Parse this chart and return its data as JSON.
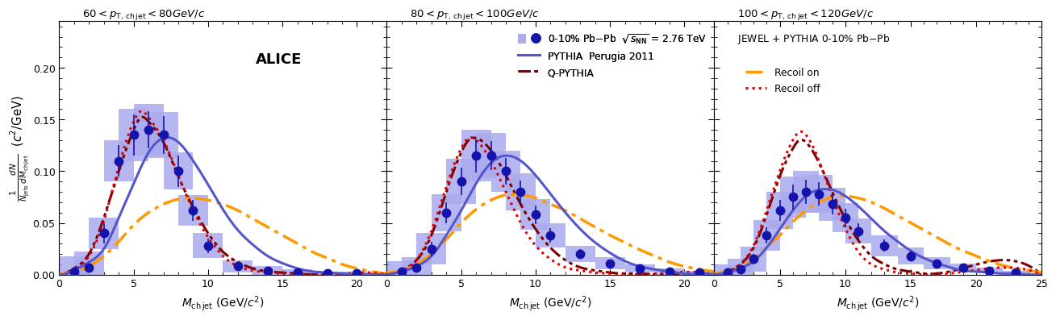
{
  "panels": [
    {
      "title_parts": [
        "60 < ",
        "p",
        "T, ch jet",
        " < 80 GeV/",
        "c"
      ],
      "xlim": [
        0,
        22
      ],
      "ylim": [
        0,
        0.245
      ],
      "xticks": [
        0,
        5,
        10,
        15,
        20
      ],
      "data_x": [
        1,
        2,
        3,
        4,
        5,
        6,
        7,
        8,
        9,
        10,
        12,
        14,
        16,
        18,
        20
      ],
      "data_y": [
        0.003,
        0.007,
        0.04,
        0.11,
        0.135,
        0.14,
        0.135,
        0.1,
        0.062,
        0.028,
        0.008,
        0.004,
        0.002,
        0.001,
        0.001
      ],
      "data_err": [
        0.003,
        0.004,
        0.01,
        0.015,
        0.02,
        0.018,
        0.018,
        0.015,
        0.01,
        0.007,
        0.004,
        0.002,
        0.001,
        0.001,
        0.001
      ],
      "sys_err": [
        0.015,
        0.015,
        0.015,
        0.02,
        0.025,
        0.025,
        0.022,
        0.018,
        0.015,
        0.012,
        0.006,
        0.004,
        0.003,
        0.002,
        0.002
      ],
      "pythia_x": [
        0.0,
        0.5,
        1.0,
        2.0,
        3.0,
        4.0,
        5.0,
        6.0,
        7.0,
        8.0,
        9.0,
        10.0,
        11.0,
        12.0,
        13.0,
        14.0,
        15.0,
        16.0,
        17.0,
        18.0,
        19.0,
        20.0,
        21.0,
        22.0
      ],
      "pythia_y": [
        0.0,
        0.001,
        0.004,
        0.012,
        0.025,
        0.055,
        0.088,
        0.118,
        0.132,
        0.128,
        0.11,
        0.087,
        0.063,
        0.043,
        0.029,
        0.018,
        0.011,
        0.006,
        0.003,
        0.002,
        0.001,
        0.0,
        0.0,
        0.0
      ],
      "qpythia_x": [
        0.0,
        0.5,
        1.0,
        2.0,
        3.0,
        4.0,
        5.0,
        5.5,
        6.0,
        7.0,
        8.0,
        9.0,
        10.0,
        11.0,
        12.0,
        13.0,
        14.0,
        15.0,
        16.0,
        17.0,
        18.0,
        19.0,
        20.0,
        21.0,
        22.0
      ],
      "qpythia_y": [
        0.0,
        0.002,
        0.006,
        0.02,
        0.055,
        0.1,
        0.14,
        0.152,
        0.148,
        0.128,
        0.095,
        0.065,
        0.04,
        0.022,
        0.012,
        0.006,
        0.003,
        0.002,
        0.001,
        0.0,
        0.0,
        0.0,
        0.0,
        0.0,
        0.0
      ],
      "jewel_on_x": [
        0.0,
        1.0,
        2.0,
        3.0,
        4.0,
        5.0,
        6.0,
        7.0,
        8.0,
        9.0,
        10.0,
        11.0,
        12.0,
        13.0,
        14.0,
        15.0,
        16.0,
        17.0,
        18.0,
        19.0,
        20.0,
        21.0,
        22.0
      ],
      "jewel_on_y": [
        0.0,
        0.003,
        0.008,
        0.018,
        0.032,
        0.048,
        0.06,
        0.068,
        0.073,
        0.074,
        0.072,
        0.068,
        0.062,
        0.054,
        0.046,
        0.038,
        0.03,
        0.022,
        0.016,
        0.01,
        0.006,
        0.003,
        0.001
      ],
      "jewel_off_x": [
        0.0,
        0.5,
        1.0,
        2.0,
        3.0,
        4.0,
        5.0,
        5.5,
        6.0,
        7.0,
        8.0,
        9.0,
        10.0,
        11.0,
        12.0,
        13.0,
        14.0,
        15.0,
        16.0,
        17.0,
        18.0,
        22.0
      ],
      "jewel_off_y": [
        0.0,
        0.001,
        0.004,
        0.018,
        0.052,
        0.105,
        0.148,
        0.158,
        0.152,
        0.13,
        0.096,
        0.062,
        0.036,
        0.018,
        0.008,
        0.004,
        0.002,
        0.001,
        0.001,
        0.0,
        0.0,
        0.0
      ],
      "alice_text": true
    },
    {
      "title_parts": [
        "80 < ",
        "p",
        "T, ch jet",
        " < 100 GeV/",
        "c"
      ],
      "xlim": [
        0,
        22
      ],
      "ylim": [
        0,
        0.245
      ],
      "xticks": [
        0,
        5,
        10,
        15,
        20
      ],
      "data_x": [
        1,
        2,
        3,
        4,
        5,
        6,
        7,
        8,
        9,
        10,
        11,
        13,
        15,
        17,
        19,
        21
      ],
      "data_y": [
        0.003,
        0.007,
        0.025,
        0.06,
        0.09,
        0.115,
        0.115,
        0.1,
        0.08,
        0.058,
        0.038,
        0.02,
        0.011,
        0.006,
        0.003,
        0.002
      ],
      "data_err": [
        0.002,
        0.004,
        0.007,
        0.01,
        0.013,
        0.016,
        0.014,
        0.013,
        0.011,
        0.009,
        0.007,
        0.005,
        0.003,
        0.002,
        0.001,
        0.001
      ],
      "sys_err": [
        0.01,
        0.01,
        0.015,
        0.018,
        0.022,
        0.025,
        0.022,
        0.02,
        0.018,
        0.015,
        0.012,
        0.008,
        0.006,
        0.004,
        0.003,
        0.002
      ],
      "pythia_x": [
        0.0,
        1.0,
        2.0,
        3.0,
        4.0,
        5.0,
        6.0,
        7.0,
        8.0,
        9.0,
        10.0,
        11.0,
        12.0,
        13.0,
        14.0,
        15.0,
        16.0,
        17.0,
        18.0,
        19.0,
        20.0,
        21.0,
        22.0
      ],
      "pythia_y": [
        0.0,
        0.003,
        0.008,
        0.018,
        0.038,
        0.062,
        0.088,
        0.108,
        0.115,
        0.11,
        0.096,
        0.078,
        0.06,
        0.044,
        0.031,
        0.021,
        0.013,
        0.008,
        0.005,
        0.003,
        0.001,
        0.001,
        0.0
      ],
      "qpythia_x": [
        0.0,
        1.0,
        2.0,
        3.0,
        4.0,
        5.0,
        5.5,
        6.0,
        7.0,
        8.0,
        9.0,
        10.0,
        11.0,
        12.0,
        13.0,
        14.0,
        15.0,
        16.0,
        17.0,
        18.0,
        22.0
      ],
      "qpythia_y": [
        0.0,
        0.004,
        0.014,
        0.038,
        0.08,
        0.118,
        0.13,
        0.132,
        0.12,
        0.096,
        0.068,
        0.044,
        0.026,
        0.014,
        0.007,
        0.004,
        0.002,
        0.001,
        0.001,
        0.0,
        0.0
      ],
      "jewel_on_x": [
        0.0,
        1.0,
        2.0,
        3.0,
        4.0,
        5.0,
        6.0,
        7.0,
        8.0,
        9.0,
        10.0,
        11.0,
        12.0,
        13.0,
        14.0,
        15.0,
        16.0,
        17.0,
        18.0,
        19.0,
        20.0,
        21.0,
        22.0
      ],
      "jewel_on_y": [
        0.002,
        0.004,
        0.01,
        0.02,
        0.034,
        0.05,
        0.063,
        0.072,
        0.077,
        0.077,
        0.074,
        0.068,
        0.062,
        0.054,
        0.046,
        0.038,
        0.031,
        0.024,
        0.018,
        0.012,
        0.008,
        0.005,
        0.003
      ],
      "jewel_off_x": [
        0.0,
        1.0,
        2.0,
        3.0,
        4.0,
        5.0,
        5.5,
        6.0,
        7.0,
        8.0,
        9.0,
        10.0,
        11.0,
        12.0,
        13.0,
        14.0,
        15.0,
        16.0,
        17.0,
        22.0
      ],
      "jewel_off_y": [
        0.0,
        0.003,
        0.014,
        0.042,
        0.085,
        0.122,
        0.132,
        0.13,
        0.11,
        0.08,
        0.05,
        0.028,
        0.015,
        0.007,
        0.004,
        0.002,
        0.001,
        0.0,
        0.0,
        0.0
      ],
      "alice_text": false
    },
    {
      "title_parts": [
        "100 < ",
        "p",
        "T, ch jet",
        " < 120 GeV/",
        "c"
      ],
      "xlim": [
        0,
        25
      ],
      "ylim": [
        0,
        0.245
      ],
      "xticks": [
        0,
        5,
        10,
        15,
        20,
        25
      ],
      "data_x": [
        1,
        2,
        3,
        4,
        5,
        6,
        7,
        8,
        9,
        10,
        11,
        13,
        15,
        17,
        19,
        21,
        23
      ],
      "data_y": [
        0.002,
        0.005,
        0.015,
        0.038,
        0.062,
        0.075,
        0.08,
        0.078,
        0.068,
        0.055,
        0.042,
        0.028,
        0.018,
        0.011,
        0.007,
        0.004,
        0.002
      ],
      "data_err": [
        0.002,
        0.003,
        0.005,
        0.008,
        0.01,
        0.012,
        0.012,
        0.011,
        0.01,
        0.009,
        0.008,
        0.006,
        0.005,
        0.003,
        0.002,
        0.002,
        0.001
      ],
      "sys_err": [
        0.008,
        0.01,
        0.012,
        0.015,
        0.018,
        0.02,
        0.02,
        0.018,
        0.016,
        0.014,
        0.012,
        0.01,
        0.008,
        0.006,
        0.004,
        0.003,
        0.002
      ],
      "pythia_x": [
        0.0,
        1.0,
        2.0,
        3.0,
        4.0,
        5.0,
        6.0,
        7.0,
        8.0,
        9.0,
        10.0,
        11.0,
        12.0,
        13.0,
        14.0,
        15.0,
        16.0,
        17.0,
        18.0,
        19.0,
        20.0,
        21.0,
        22.0,
        23.0,
        24.0,
        25.0
      ],
      "pythia_y": [
        0.0,
        0.002,
        0.006,
        0.013,
        0.026,
        0.044,
        0.062,
        0.076,
        0.082,
        0.082,
        0.076,
        0.066,
        0.054,
        0.042,
        0.032,
        0.023,
        0.016,
        0.011,
        0.007,
        0.004,
        0.003,
        0.002,
        0.001,
        0.001,
        0.0,
        0.0
      ],
      "qpythia_x": [
        0.0,
        1.0,
        2.0,
        3.0,
        4.0,
        5.0,
        6.0,
        6.5,
        7.0,
        8.0,
        9.0,
        10.0,
        11.0,
        12.0,
        13.0,
        14.0,
        15.0,
        16.0,
        17.0,
        25.0
      ],
      "qpythia_y": [
        0.0,
        0.003,
        0.01,
        0.026,
        0.058,
        0.095,
        0.122,
        0.13,
        0.128,
        0.108,
        0.08,
        0.054,
        0.033,
        0.018,
        0.01,
        0.005,
        0.003,
        0.001,
        0.001,
        0.0
      ],
      "jewel_on_x": [
        0.0,
        1.0,
        2.0,
        3.0,
        4.0,
        5.0,
        6.0,
        7.0,
        8.0,
        9.0,
        10.0,
        11.0,
        12.0,
        13.0,
        14.0,
        15.0,
        16.0,
        17.0,
        18.0,
        19.0,
        20.0,
        21.0,
        22.0,
        23.0,
        24.0,
        25.0
      ],
      "jewel_on_y": [
        0.001,
        0.003,
        0.007,
        0.015,
        0.026,
        0.038,
        0.051,
        0.062,
        0.07,
        0.075,
        0.076,
        0.074,
        0.07,
        0.064,
        0.057,
        0.05,
        0.043,
        0.036,
        0.029,
        0.023,
        0.018,
        0.013,
        0.009,
        0.006,
        0.004,
        0.002
      ],
      "jewel_off_x": [
        0.0,
        1.0,
        2.0,
        3.0,
        4.0,
        5.0,
        6.0,
        6.5,
        7.0,
        8.0,
        9.0,
        10.0,
        11.0,
        12.0,
        13.0,
        14.0,
        15.0,
        16.0,
        17.0,
        25.0
      ],
      "jewel_off_y": [
        0.0,
        0.002,
        0.01,
        0.028,
        0.062,
        0.1,
        0.13,
        0.138,
        0.135,
        0.11,
        0.075,
        0.045,
        0.022,
        0.01,
        0.005,
        0.002,
        0.001,
        0.0,
        0.0,
        0.0
      ],
      "alice_text": false
    }
  ],
  "yticks": [
    0.0,
    0.05,
    0.1,
    0.15,
    0.2
  ],
  "ylabel": "$\\frac{1}{N_{\\mathrm{jets}}} \\frac{dN}{dM_{\\mathrm{ch\\,jet}}}$  ($c^2$/GeV)",
  "xlabel": "$M_{\\mathrm{ch\\,jet}}$ (GeV/$c^2$)",
  "data_color": "#1414aa",
  "data_marker": "o",
  "data_markersize": 7.5,
  "sys_color": "#aaaaee",
  "pythia_color": "#5555cc",
  "qpythia_color": "#7b0000",
  "jewel_on_color": "#ff9900",
  "jewel_off_color": "#dd0000",
  "background": "#ffffff"
}
